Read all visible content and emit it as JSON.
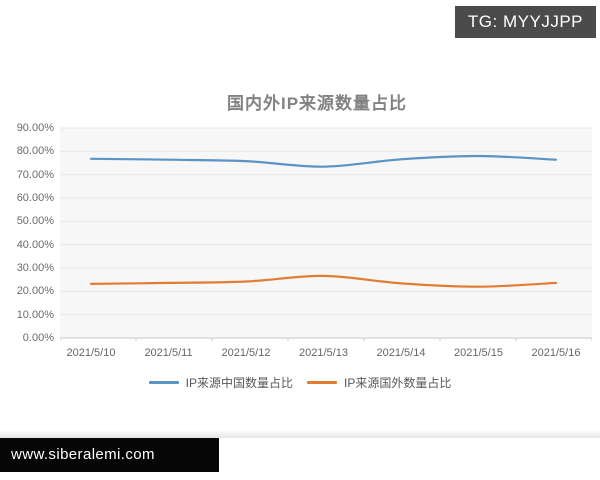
{
  "badge": {
    "text": "TG: MYYJJPP"
  },
  "footer": {
    "url": "www.siberalemi.com"
  },
  "chart_data": {
    "type": "line",
    "title": "国内外IP来源数量占比",
    "categories": [
      "2021/5/10",
      "2021/5/11",
      "2021/5/12",
      "2021/5/13",
      "2021/5/14",
      "2021/5/15",
      "2021/5/16"
    ],
    "series": [
      {
        "name": "IP来源中国数量占比",
        "color": "#5b93c4",
        "values": [
          76.8,
          76.4,
          75.8,
          73.4,
          76.6,
          78.0,
          76.4
        ]
      },
      {
        "name": "IP来源国外数量占比",
        "color": "#e17d33",
        "values": [
          23.2,
          23.6,
          24.2,
          26.6,
          23.4,
          22.0,
          23.6
        ]
      }
    ],
    "xlabel": "",
    "ylabel": "",
    "ylim": [
      0,
      90
    ],
    "ytick_step": 10,
    "ytick_labels": [
      "0.00%",
      "10.00%",
      "20.00%",
      "30.00%",
      "40.00%",
      "50.00%",
      "60.00%",
      "70.00%",
      "80.00%",
      "90.00%"
    ],
    "grid": true,
    "line_style": "smooth",
    "legend_position": "bottom",
    "colors": {
      "gridline": "#e7e7e7",
      "axis_line": "#c9c9c9",
      "plot_bg": "#f7f7f7",
      "title_text": "#828282",
      "tick_text": "#666666",
      "legend_text": "#595959",
      "badge_bg": "#4b4b4b",
      "footer_bg": "#060606"
    }
  }
}
